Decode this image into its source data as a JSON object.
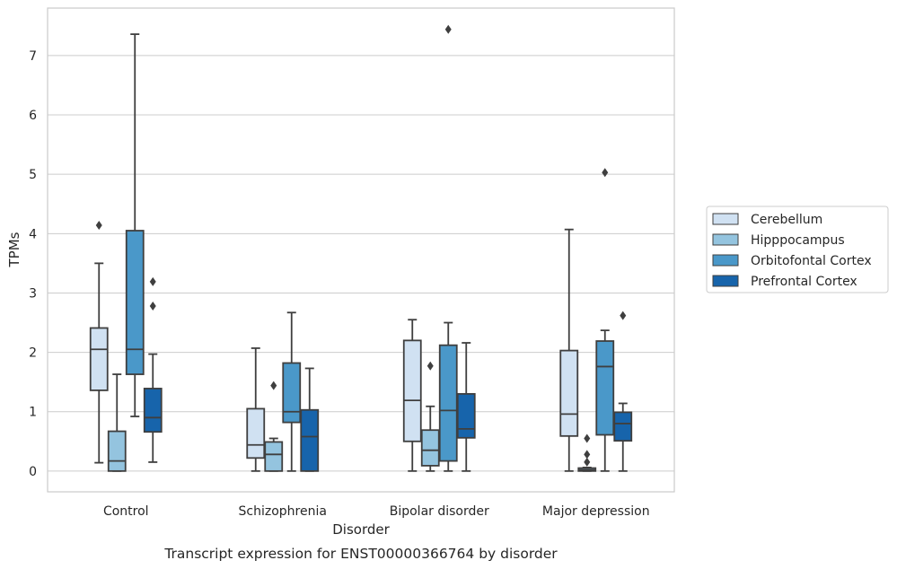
{
  "caption": "Transcript expression for ENST00000366764 by disorder",
  "chart_data": {
    "type": "box",
    "xlabel": "Disorder",
    "ylabel": "TPMs",
    "ylim": [
      -0.35,
      7.8
    ],
    "yticks": [
      0,
      1,
      2,
      3,
      4,
      5,
      6,
      7
    ],
    "grid": true,
    "legend_position": "right",
    "categories": [
      "Control",
      "Schizophrenia",
      "Bipolar disorder",
      "Major depression"
    ],
    "series": [
      {
        "name": "Cerebellum",
        "color": "#d0e1f2",
        "boxes": [
          {
            "whislo": 0.14,
            "q1": 1.36,
            "med": 2.05,
            "q3": 2.41,
            "whishi": 3.5,
            "fliers": [
              4.14
            ]
          },
          {
            "whislo": 0.0,
            "q1": 0.22,
            "med": 0.44,
            "q3": 1.05,
            "whishi": 2.07,
            "fliers": []
          },
          {
            "whislo": 0.0,
            "q1": 0.5,
            "med": 1.19,
            "q3": 2.2,
            "whishi": 2.55,
            "fliers": []
          },
          {
            "whislo": 0.0,
            "q1": 0.59,
            "med": 0.96,
            "q3": 2.03,
            "whishi": 4.07,
            "fliers": []
          }
        ]
      },
      {
        "name": "Hipppocampus",
        "color": "#94c4df",
        "boxes": [
          {
            "whislo": 0.0,
            "q1": 0.0,
            "med": 0.17,
            "q3": 0.67,
            "whishi": 1.63,
            "fliers": []
          },
          {
            "whislo": 0.0,
            "q1": 0.0,
            "med": 0.28,
            "q3": 0.49,
            "whishi": 0.55,
            "fliers": [
              1.44
            ]
          },
          {
            "whislo": 0.0,
            "q1": 0.09,
            "med": 0.35,
            "q3": 0.69,
            "whishi": 1.09,
            "fliers": [
              1.77
            ]
          },
          {
            "whislo": 0.0,
            "q1": 0.0,
            "med": 0.02,
            "q3": 0.05,
            "whishi": 0.06,
            "fliers": [
              0.15,
              0.28,
              0.55
            ]
          }
        ]
      },
      {
        "name": "Orbitofontal Cortex",
        "color": "#4a98c9",
        "boxes": [
          {
            "whislo": 0.92,
            "q1": 1.63,
            "med": 2.05,
            "q3": 4.05,
            "whishi": 7.36,
            "fliers": []
          },
          {
            "whislo": 0.0,
            "q1": 0.82,
            "med": 1.0,
            "q3": 1.82,
            "whishi": 2.67,
            "fliers": []
          },
          {
            "whislo": 0.0,
            "q1": 0.17,
            "med": 1.02,
            "q3": 2.12,
            "whishi": 2.5,
            "fliers": [
              7.44
            ]
          },
          {
            "whislo": 0.0,
            "q1": 0.61,
            "med": 1.76,
            "q3": 2.19,
            "whishi": 2.37,
            "fliers": [
              5.03
            ]
          }
        ]
      },
      {
        "name": "Prefrontal Cortex",
        "color": "#1764ab",
        "boxes": [
          {
            "whislo": 0.15,
            "q1": 0.66,
            "med": 0.9,
            "q3": 1.39,
            "whishi": 1.97,
            "fliers": [
              2.78,
              3.19
            ]
          },
          {
            "whislo": 0.0,
            "q1": 0.0,
            "med": 0.58,
            "q3": 1.03,
            "whishi": 1.73,
            "fliers": []
          },
          {
            "whislo": 0.0,
            "q1": 0.56,
            "med": 0.71,
            "q3": 1.3,
            "whishi": 2.16,
            "fliers": []
          },
          {
            "whislo": 0.0,
            "q1": 0.51,
            "med": 0.8,
            "q3": 0.99,
            "whishi": 1.14,
            "fliers": [
              2.62
            ]
          }
        ]
      }
    ]
  }
}
